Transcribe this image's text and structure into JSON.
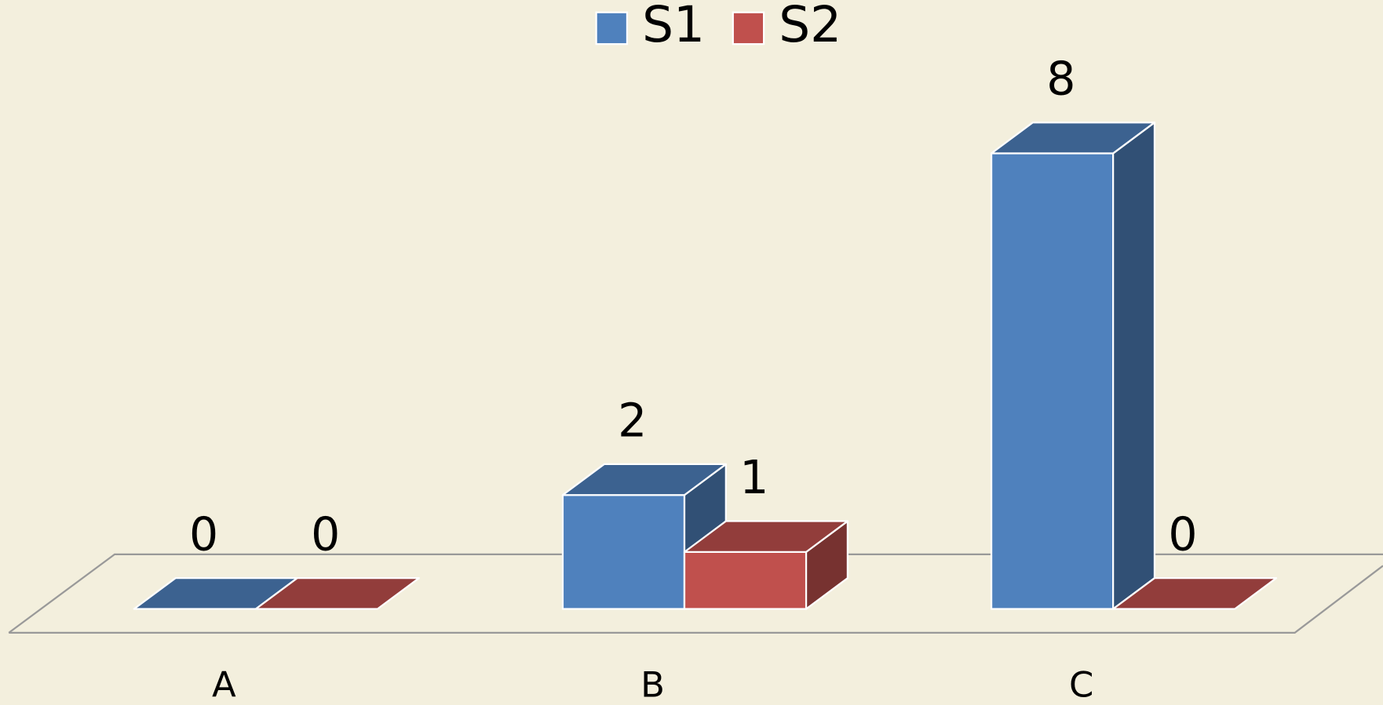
{
  "chart_data": {
    "type": "bar3d",
    "categories": [
      "A",
      "B",
      "C"
    ],
    "series": [
      {
        "name": "S1",
        "color": "#4f81bd",
        "values": [
          0,
          2,
          8
        ]
      },
      {
        "name": "S2",
        "color": "#c0504d",
        "values": [
          0,
          1,
          0
        ]
      }
    ]
  }
}
